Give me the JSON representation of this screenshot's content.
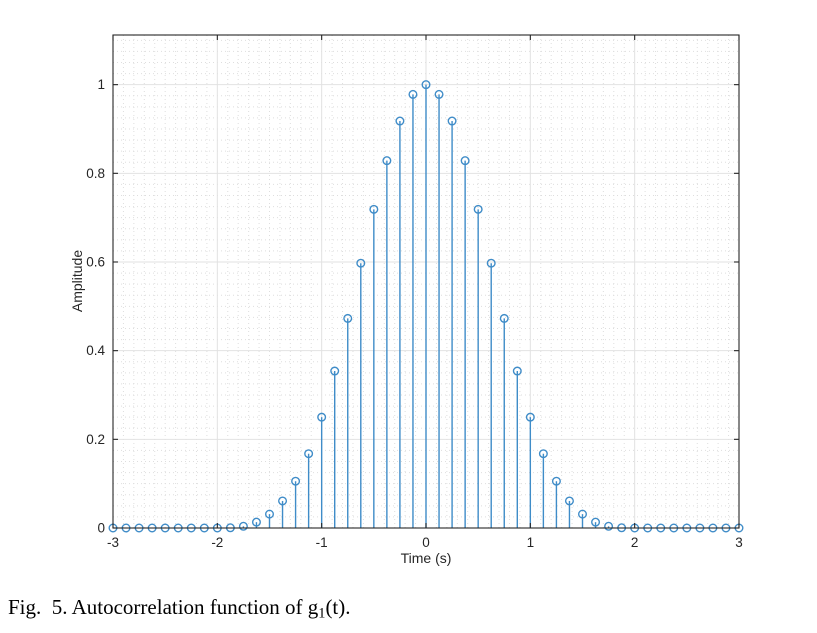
{
  "figure": {
    "caption_prefix": "Fig.  5. Autocorrelation function of g",
    "caption_sub": "1",
    "caption_suffix": "(t)."
  },
  "chart_data": {
    "type": "stem",
    "title": "",
    "xlabel": "Time (s)",
    "ylabel": "Amplitude",
    "xlim": [
      -3,
      3
    ],
    "ylim": [
      0,
      1.112
    ],
    "x_ticks": [
      -3,
      -2,
      -1,
      0,
      1,
      2,
      3
    ],
    "x_tick_labels": [
      "-3",
      "-2",
      "-1",
      "0",
      "1",
      "2",
      "3"
    ],
    "y_ticks": [
      0,
      0.2,
      0.4,
      0.6,
      0.8,
      1
    ],
    "y_tick_labels": [
      "0",
      "0.2",
      "0.4",
      "0.6",
      "0.8",
      "1"
    ],
    "grid": "major+minor",
    "minor_grid_step_x": 0.1,
    "minor_grid_step_y": 0.025,
    "x_step": 0.125,
    "x": [
      -3,
      -2.875,
      -2.75,
      -2.625,
      -2.5,
      -2.375,
      -2.25,
      -2.125,
      -2,
      -1.875,
      -1.75,
      -1.625,
      -1.5,
      -1.375,
      -1.25,
      -1.125,
      -1,
      -0.875,
      -0.75,
      -0.625,
      -0.5,
      -0.375,
      -0.25,
      -0.125,
      0,
      0.125,
      0.25,
      0.375,
      0.5,
      0.625,
      0.75,
      0.875,
      1,
      1.125,
      1.25,
      1.375,
      1.5,
      1.625,
      1.75,
      1.875,
      2,
      2.125,
      2.25,
      2.375,
      2.5,
      2.625,
      2.75,
      2.875,
      3
    ],
    "y": [
      0,
      0,
      0,
      0,
      0,
      0,
      0,
      0,
      0,
      0.0005,
      0.0039,
      0.0132,
      0.0313,
      0.061,
      0.1055,
      0.1675,
      0.25,
      0.354,
      0.4727,
      0.5972,
      0.7188,
      0.8286,
      0.918,
      0.978,
      1,
      0.978,
      0.918,
      0.8286,
      0.7188,
      0.5972,
      0.4727,
      0.354,
      0.25,
      0.1675,
      0.1055,
      0.061,
      0.0313,
      0.0132,
      0.0039,
      0.0005,
      0,
      0,
      0,
      0,
      0,
      0,
      0,
      0,
      0
    ],
    "stem_color": "#3f8cc8",
    "axis_color": "#262626",
    "tick_label_color": "#262626",
    "major_grid_color": "#e2e2e2",
    "minor_grid_color": "#dedede",
    "marker": "hollow-circle",
    "legend": null
  }
}
